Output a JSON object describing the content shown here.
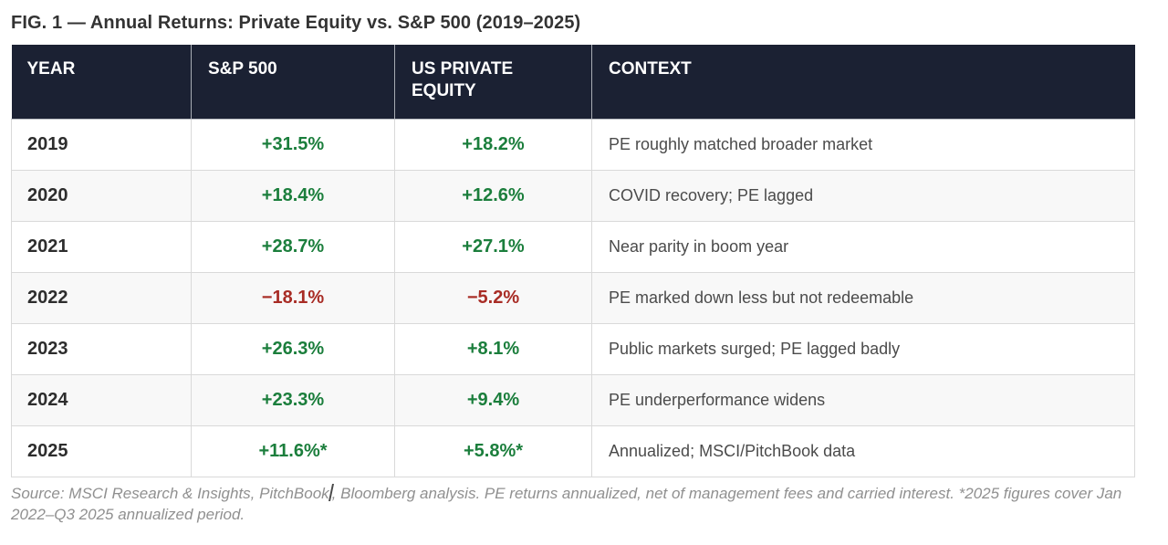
{
  "title": "FIG. 1 — Annual Returns: Private Equity vs. S&P 500 (2019–2025)",
  "colors": {
    "positive": "#1b7e3c",
    "negative": "#a82c25",
    "header_bg": "#1b2133"
  },
  "table": {
    "columns": [
      "YEAR",
      "S&P 500",
      "US PRIVATE EQUITY",
      "CONTEXT"
    ],
    "rows": [
      {
        "year": "2019",
        "sp500": "+31.5%",
        "sp500_dir": "pos",
        "pe": "+18.2%",
        "pe_dir": "pos",
        "context": "PE roughly matched broader market"
      },
      {
        "year": "2020",
        "sp500": "+18.4%",
        "sp500_dir": "pos",
        "pe": "+12.6%",
        "pe_dir": "pos",
        "context": "COVID recovery; PE lagged"
      },
      {
        "year": "2021",
        "sp500": "+28.7%",
        "sp500_dir": "pos",
        "pe": "+27.1%",
        "pe_dir": "pos",
        "context": "Near parity in boom year"
      },
      {
        "year": "2022",
        "sp500": "−18.1%",
        "sp500_dir": "neg",
        "pe": "−5.2%",
        "pe_dir": "neg",
        "context": "PE marked down less but not redeemable"
      },
      {
        "year": "2023",
        "sp500": "+26.3%",
        "sp500_dir": "pos",
        "pe": "+8.1%",
        "pe_dir": "pos",
        "context": "Public markets surged; PE lagged badly"
      },
      {
        "year": "2024",
        "sp500": "+23.3%",
        "sp500_dir": "pos",
        "pe": "+9.4%",
        "pe_dir": "pos",
        "context": "PE underperformance widens"
      },
      {
        "year": "2025",
        "sp500": "+11.6%*",
        "sp500_dir": "pos",
        "pe": "+5.8%*",
        "pe_dir": "pos",
        "context": "Annualized; MSCI/PitchBook data"
      }
    ]
  },
  "footnote": {
    "part1": "Source: MSCI Research & Insights, PitchBook",
    "part2": ", Bloomberg analysis. PE returns annualized, net of management fees and carried interest. *2025 figures cover Jan 2022–Q3 2025 annualized period."
  },
  "chart_data": {
    "type": "table",
    "title": "FIG. 1 — Annual Returns: Private Equity vs. S&P 500 (2019–2025)",
    "categories": [
      "2019",
      "2020",
      "2021",
      "2022",
      "2023",
      "2024",
      "2025"
    ],
    "series": [
      {
        "name": "S&P 500",
        "values": [
          31.5,
          18.4,
          28.7,
          -18.1,
          26.3,
          23.3,
          11.6
        ]
      },
      {
        "name": "US Private Equity",
        "values": [
          18.2,
          12.6,
          27.1,
          -5.2,
          8.1,
          9.4,
          5.8
        ]
      }
    ],
    "annotations": [
      "2025 values are annualized estimates (marked with *)"
    ]
  }
}
